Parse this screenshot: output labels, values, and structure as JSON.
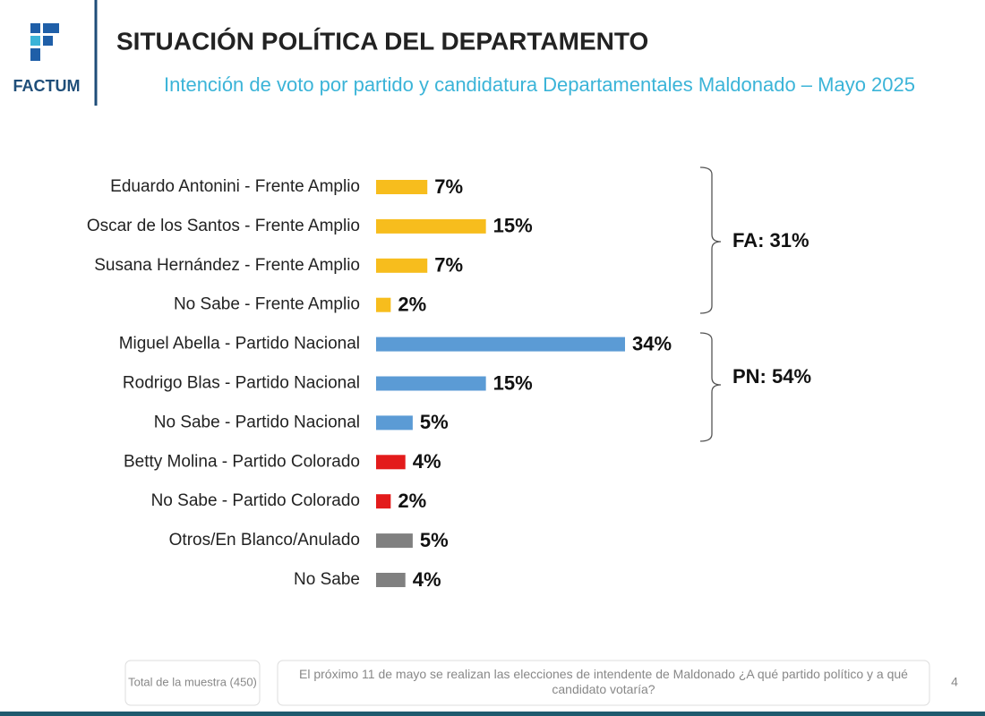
{
  "header": {
    "logo": "FACTUM"
  },
  "chart_data": {
    "type": "bar",
    "orientation": "horizontal",
    "title": "SITUACIÓN POLÍTICA DEL DEPARTAMENTO",
    "subtitle": "Intención de voto por partido y candidatura Departamentales Maldonado – Mayo 2025",
    "categories": [
      "Eduardo Antonini - Frente Amplio",
      "Oscar de los Santos - Frente Amplio",
      "Susana Hernández - Frente Amplio",
      "No Sabe - Frente Amplio",
      "Miguel Abella - Partido Nacional",
      "Rodrigo Blas - Partido Nacional",
      "No Sabe - Partido Nacional",
      "Betty Molina - Partido Colorado",
      "No Sabe - Partido Colorado",
      "Otros/En Blanco/Anulado",
      "No Sabe"
    ],
    "values": [
      7,
      15,
      7,
      2,
      34,
      15,
      5,
      4,
      2,
      5,
      4
    ],
    "value_labels": [
      "7%",
      "15%",
      "7%",
      "2%",
      "34%",
      "15%",
      "5%",
      "4%",
      "2%",
      "5%",
      "4%"
    ],
    "colors": [
      "#f7bd1d",
      "#f7bd1d",
      "#f7bd1d",
      "#f7bd1d",
      "#5b9bd5",
      "#5b9bd5",
      "#5b9bd5",
      "#e31b1b",
      "#e31b1b",
      "#808080",
      "#808080"
    ],
    "annotations": [
      "FA: 31%",
      "PN: 54%"
    ]
  },
  "footer": {
    "sample": "Total de la muestra (450)",
    "question": "El próximo 11 de mayo se realizan las elecciones de intendente de Maldonado ¿A qué partido político y a qué candidato votaría?",
    "page": "4"
  }
}
